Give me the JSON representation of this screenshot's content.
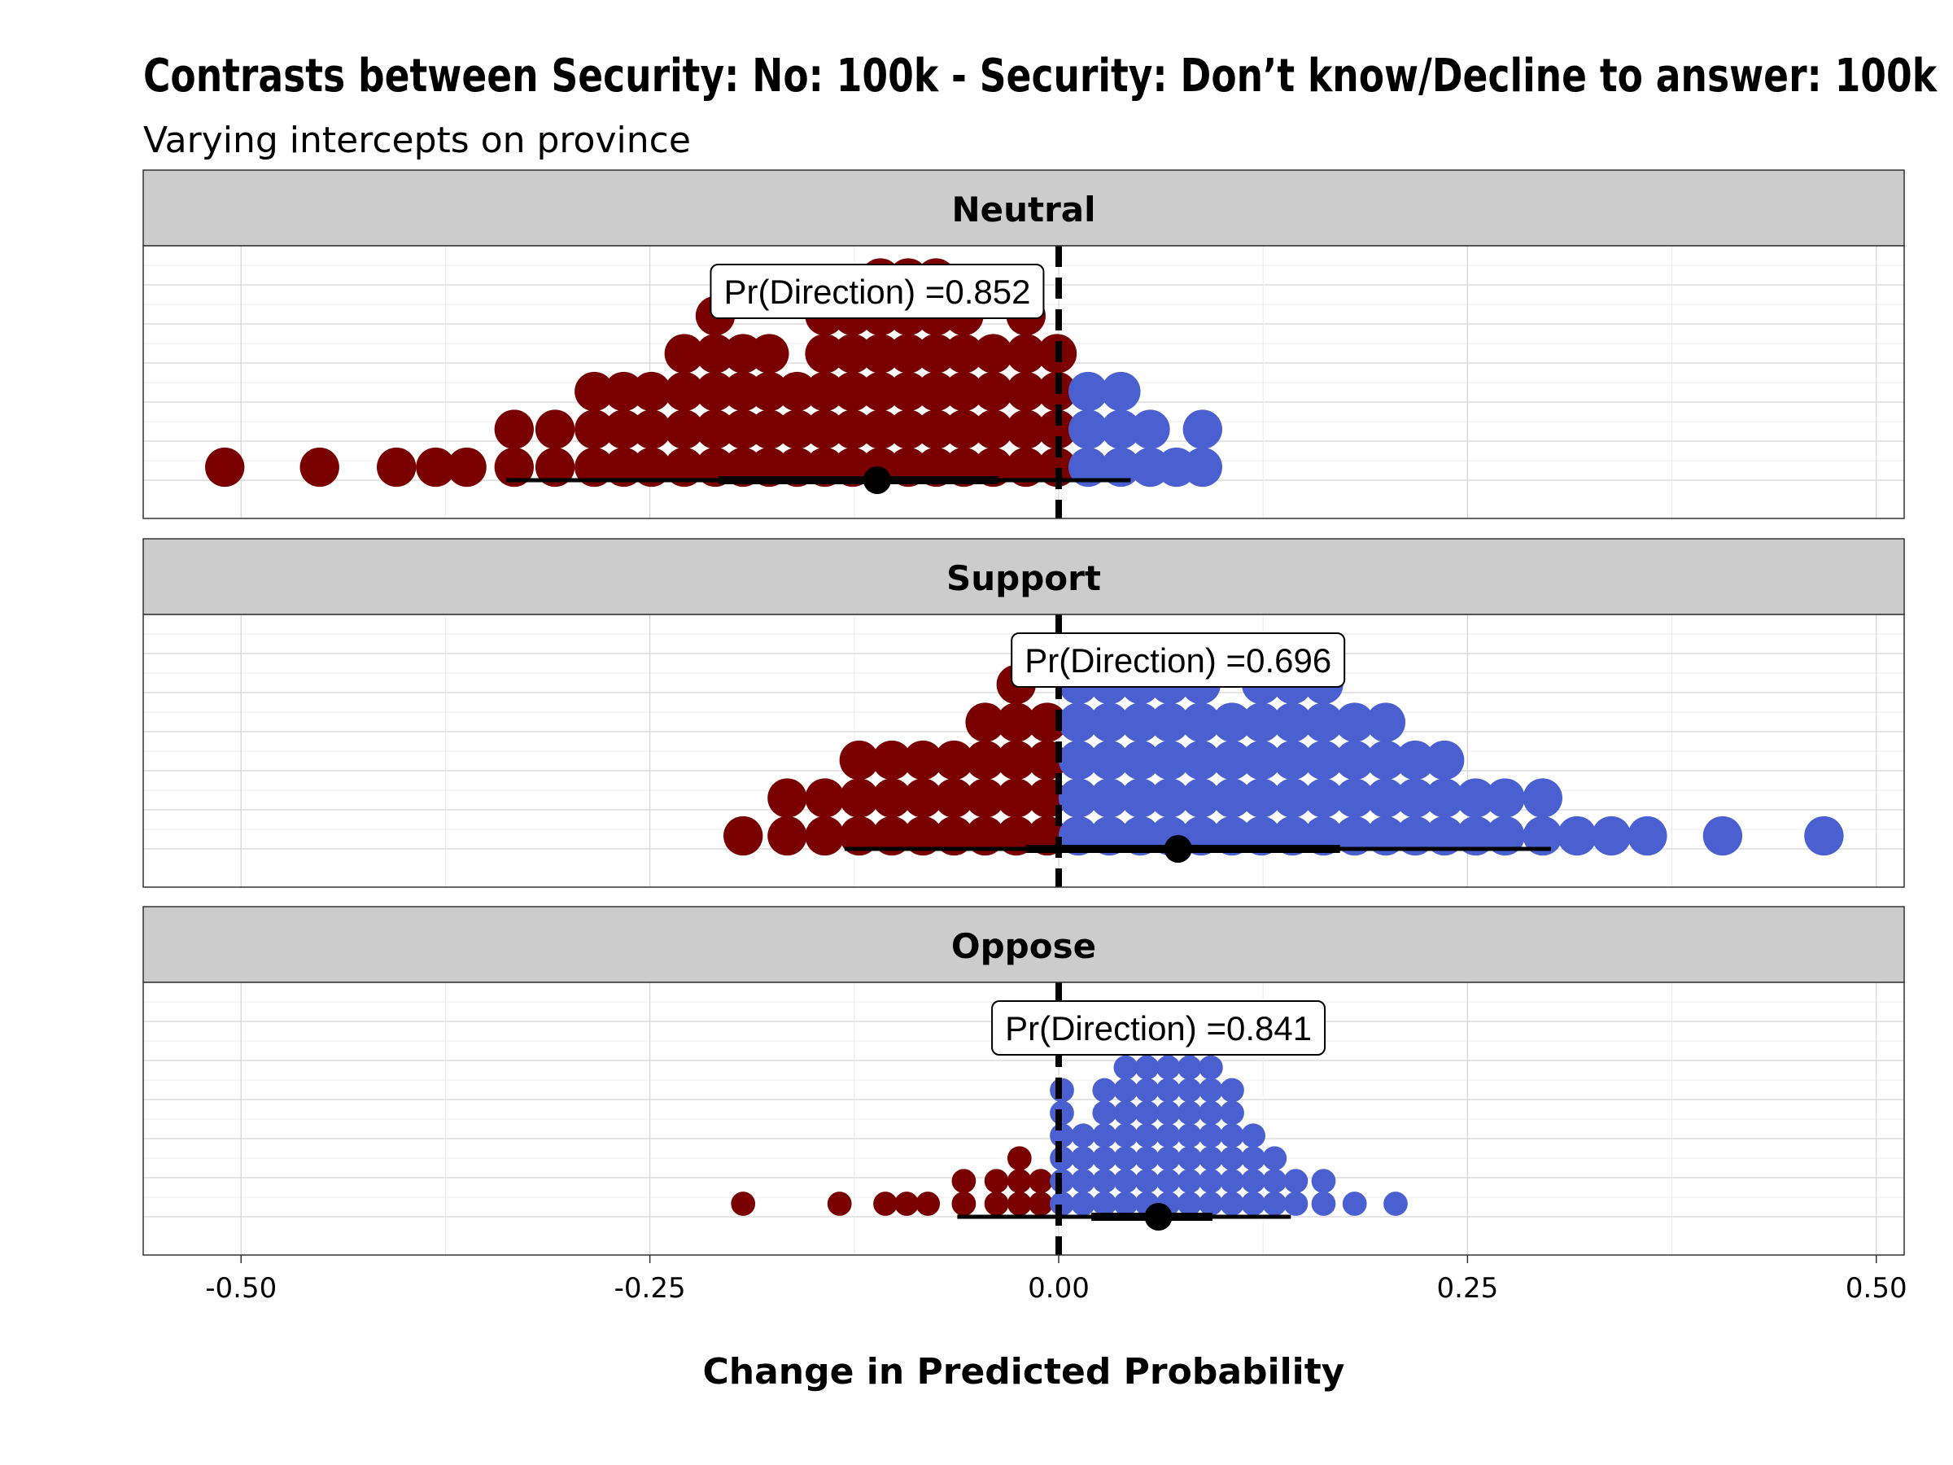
{
  "chart_data": {
    "type": "dotplot",
    "title": "Contrasts between Security: No: 100k - Security: Don’t know/Decline to answer: 100k",
    "subtitle": "Varying intercepts on province",
    "xlabel": "Change in Predicted Probability",
    "xlim": [
      -0.55,
      0.51
    ],
    "xticks": [
      -0.5,
      -0.25,
      0.0,
      0.25,
      0.5
    ],
    "xtick_labels": [
      "-0.50",
      "-0.25",
      "0.00",
      "0.25",
      "0.50"
    ],
    "reference_line": 0.0,
    "colors": {
      "negative": "#7a0000",
      "positive": "#4a5fd0",
      "strip_fill": "#cccccc",
      "reference": "#000000"
    },
    "panels": [
      {
        "label": "Neutral",
        "pr_direction_label": "Pr(Direction) =0.852",
        "pr_direction_x": -0.111,
        "median": -0.111,
        "interval_66": [
          -0.208,
          -0.037
        ],
        "interval_95": [
          -0.338,
          0.044
        ],
        "dot_stacks": [
          {
            "x": -0.51,
            "n": 1
          },
          {
            "x": -0.452,
            "n": 1
          },
          {
            "x": -0.405,
            "n": 1
          },
          {
            "x": -0.381,
            "n": 1
          },
          {
            "x": -0.362,
            "n": 1
          },
          {
            "x": -0.333,
            "n": 2
          },
          {
            "x": -0.308,
            "n": 2
          },
          {
            "x": -0.284,
            "n": 3
          },
          {
            "x": -0.266,
            "n": 3
          },
          {
            "x": -0.249,
            "n": 3
          },
          {
            "x": -0.229,
            "n": 4
          },
          {
            "x": -0.21,
            "n": 5
          },
          {
            "x": -0.193,
            "n": 4
          },
          {
            "x": -0.177,
            "n": 4
          },
          {
            "x": -0.16,
            "n": 3
          },
          {
            "x": -0.143,
            "n": 5
          },
          {
            "x": -0.126,
            "n": 5
          },
          {
            "x": -0.109,
            "n": 6
          },
          {
            "x": -0.092,
            "n": 6
          },
          {
            "x": -0.075,
            "n": 6
          },
          {
            "x": -0.058,
            "n": 5
          },
          {
            "x": -0.04,
            "n": 4
          },
          {
            "x": -0.02,
            "n": 5
          },
          {
            "x": -0.001,
            "n": 4
          },
          {
            "x": 0.018,
            "n": 3
          },
          {
            "x": 0.038,
            "n": 3
          },
          {
            "x": 0.056,
            "n": 2
          },
          {
            "x": 0.072,
            "n": 1
          },
          {
            "x": 0.088,
            "n": 2
          }
        ]
      },
      {
        "label": "Support",
        "pr_direction_label": "Pr(Direction) =0.696",
        "pr_direction_x": 0.073,
        "median": 0.073,
        "interval_66": [
          -0.02,
          0.172
        ],
        "interval_95": [
          -0.131,
          0.301
        ],
        "dot_stacks": [
          {
            "x": -0.193,
            "n": 1
          },
          {
            "x": -0.166,
            "n": 2
          },
          {
            "x": -0.143,
            "n": 2
          },
          {
            "x": -0.122,
            "n": 3
          },
          {
            "x": -0.102,
            "n": 3
          },
          {
            "x": -0.083,
            "n": 3
          },
          {
            "x": -0.064,
            "n": 3
          },
          {
            "x": -0.045,
            "n": 4
          },
          {
            "x": -0.026,
            "n": 5
          },
          {
            "x": -0.007,
            "n": 4
          },
          {
            "x": 0.012,
            "n": 5
          },
          {
            "x": 0.031,
            "n": 5
          },
          {
            "x": 0.05,
            "n": 5
          },
          {
            "x": 0.068,
            "n": 5
          },
          {
            "x": 0.087,
            "n": 5
          },
          {
            "x": 0.106,
            "n": 4
          },
          {
            "x": 0.124,
            "n": 5
          },
          {
            "x": 0.143,
            "n": 5
          },
          {
            "x": 0.162,
            "n": 5
          },
          {
            "x": 0.181,
            "n": 4
          },
          {
            "x": 0.2,
            "n": 4
          },
          {
            "x": 0.218,
            "n": 3
          },
          {
            "x": 0.236,
            "n": 3
          },
          {
            "x": 0.255,
            "n": 2
          },
          {
            "x": 0.273,
            "n": 2
          },
          {
            "x": 0.296,
            "n": 2
          },
          {
            "x": 0.317,
            "n": 1
          },
          {
            "x": 0.338,
            "n": 1
          },
          {
            "x": 0.36,
            "n": 1
          },
          {
            "x": 0.406,
            "n": 1
          },
          {
            "x": 0.468,
            "n": 1
          }
        ]
      },
      {
        "label": "Oppose",
        "pr_direction_label": "Pr(Direction) =0.841",
        "pr_direction_x": 0.061,
        "median": 0.061,
        "interval_66": [
          0.02,
          0.094
        ],
        "interval_95": [
          -0.062,
          0.142
        ],
        "dot_stacks": [
          {
            "x": -0.193,
            "n": 1
          },
          {
            "x": -0.134,
            "n": 1
          },
          {
            "x": -0.106,
            "n": 1
          },
          {
            "x": -0.093,
            "n": 1
          },
          {
            "x": -0.08,
            "n": 1
          },
          {
            "x": -0.058,
            "n": 2
          },
          {
            "x": -0.038,
            "n": 2
          },
          {
            "x": -0.024,
            "n": 3
          },
          {
            "x": -0.011,
            "n": 2
          },
          {
            "x": 0.002,
            "n": 6
          },
          {
            "x": 0.015,
            "n": 4
          },
          {
            "x": 0.028,
            "n": 6
          },
          {
            "x": 0.041,
            "n": 7
          },
          {
            "x": 0.054,
            "n": 9
          },
          {
            "x": 0.067,
            "n": 9
          },
          {
            "x": 0.08,
            "n": 9
          },
          {
            "x": 0.093,
            "n": 7
          },
          {
            "x": 0.106,
            "n": 6
          },
          {
            "x": 0.119,
            "n": 4
          },
          {
            "x": 0.132,
            "n": 3
          },
          {
            "x": 0.145,
            "n": 2
          },
          {
            "x": 0.162,
            "n": 2
          },
          {
            "x": 0.181,
            "n": 1
          },
          {
            "x": 0.206,
            "n": 1
          }
        ]
      }
    ]
  }
}
